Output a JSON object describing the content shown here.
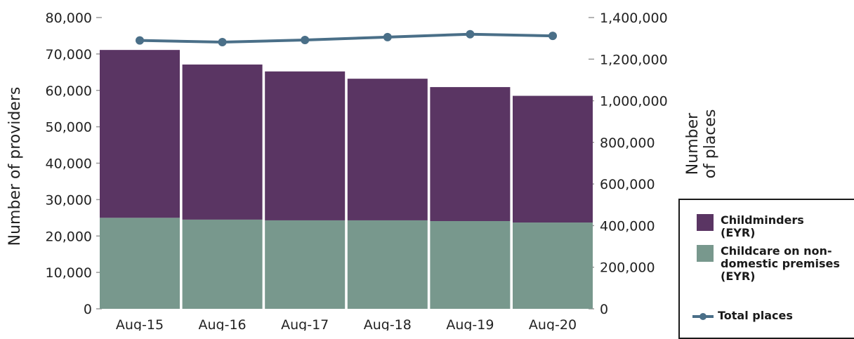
{
  "chart_data": {
    "type": "bar",
    "stacked": true,
    "categories": [
      "Aug-15",
      "Aug-16",
      "Aug-17",
      "Aug-18",
      "Aug-19",
      "Aug-20"
    ],
    "series": [
      {
        "name": "Childcare on non-domestic premises (EYR)",
        "axis": "left",
        "color": "#78988d",
        "values": [
          25000,
          24500,
          24300,
          24300,
          24100,
          23700
        ]
      },
      {
        "name": "Childminders (EYR)",
        "axis": "left",
        "color": "#5a3563",
        "values": [
          46100,
          42600,
          40900,
          38900,
          36800,
          34800
        ]
      },
      {
        "name": "Total places",
        "type": "line",
        "axis": "right",
        "color": "#4a6f88",
        "values": [
          1290000,
          1282000,
          1292000,
          1306000,
          1320000,
          1312000
        ]
      }
    ],
    "ylabel": "Number of providers",
    "y2label": [
      "Number",
      "of places"
    ],
    "ylim": [
      0,
      80000
    ],
    "y2lim": [
      0,
      1400000
    ],
    "yticks": [
      "0",
      "10,000",
      "20,000",
      "30,000",
      "40,000",
      "50,000",
      "60,000",
      "70,000",
      "80,000"
    ],
    "y2ticks": [
      "0",
      "200,000",
      "400,000",
      "600,000",
      "800,000",
      "1,000,000",
      "1,200,000",
      "1,400,000"
    ],
    "grid": false,
    "legend_position": "bottom-right"
  },
  "legend": {
    "items": [
      {
        "label": "Childminders (EYR)",
        "color": "#5a3563"
      },
      {
        "label": "Childcare on non-domestic premises (EYR)",
        "color": "#78988d"
      },
      {
        "label": "Total places",
        "color": "#4a6f88"
      }
    ]
  }
}
